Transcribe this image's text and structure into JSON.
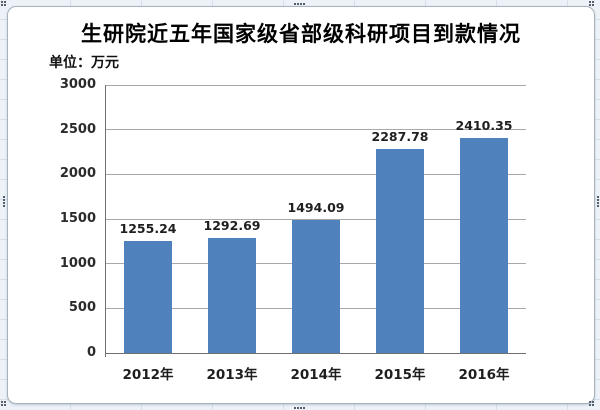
{
  "chart_data": {
    "type": "bar",
    "title": "生研院近五年国家级省部级科研项目到款情况",
    "unit_label": "单位：万元",
    "categories": [
      "2012年",
      "2013年",
      "2014年",
      "2015年",
      "2016年"
    ],
    "values": [
      1255.24,
      1292.69,
      1494.09,
      2287.78,
      2410.35
    ],
    "data_labels": [
      "1255.24",
      "1292.69",
      "1494.09",
      "2287.78",
      "2410.35"
    ],
    "yticks": [
      0,
      500,
      1000,
      1500,
      2000,
      2500,
      3000
    ],
    "ylim": [
      0,
      3000
    ],
    "grid": true,
    "legend": "none",
    "colors": {
      "bar": "#4f81bd",
      "gridline": "#a8a8a8",
      "axis": "#707070",
      "chart_border": "#a7b2bc",
      "sheet_background": "#edf2f8",
      "sheet_gridline": "#d5e0eb"
    }
  }
}
